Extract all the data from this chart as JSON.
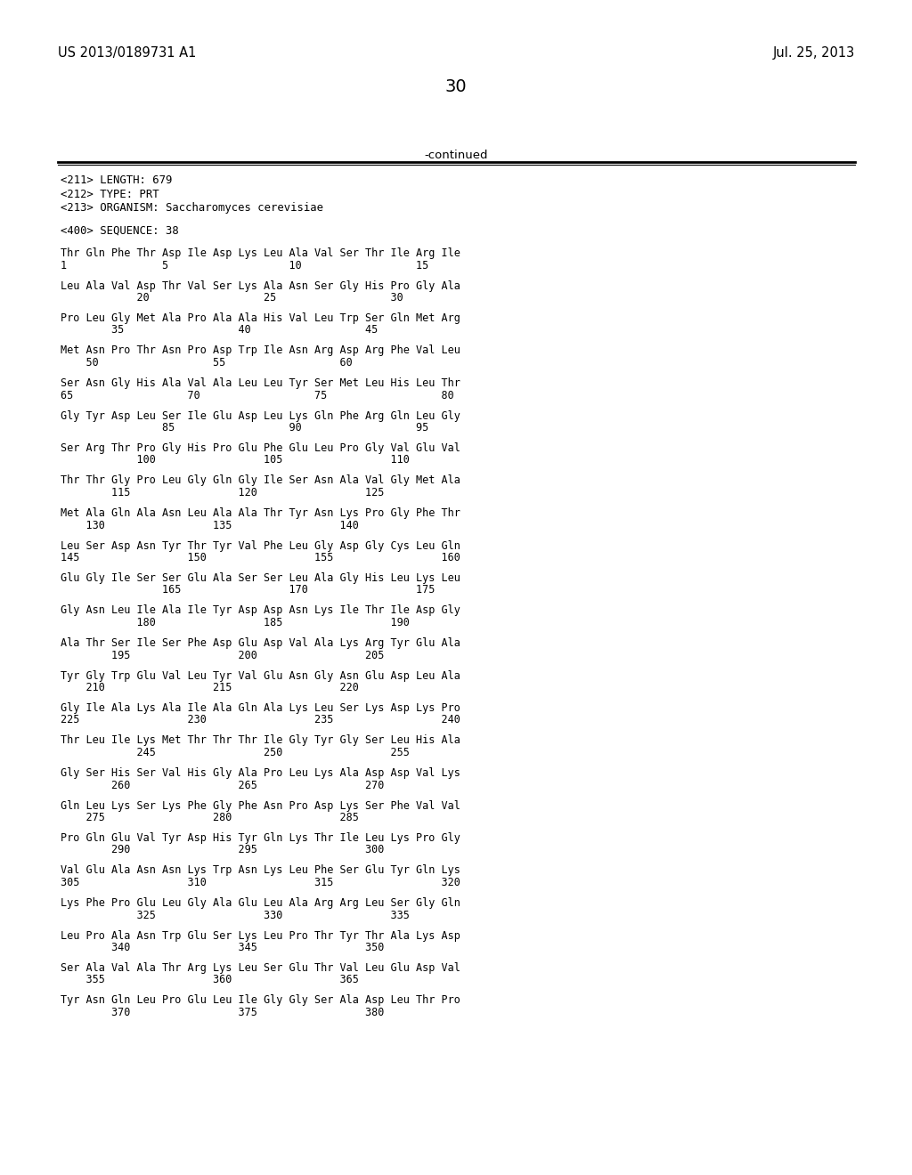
{
  "header_left": "US 2013/0189731 A1",
  "header_right": "Jul. 25, 2013",
  "page_number": "30",
  "continued_text": "-continued",
  "metadata": [
    "<211> LENGTH: 679",
    "<212> TYPE: PRT",
    "<213> ORGANISM: Saccharomyces cerevisiae"
  ],
  "sequence_header": "<400> SEQUENCE: 38",
  "sequence_blocks": [
    [
      "Thr Gln Phe Thr Asp Ile Asp Lys Leu Ala Val Ser Thr Ile Arg Ile",
      "1               5                   10                  15"
    ],
    [
      "Leu Ala Val Asp Thr Val Ser Lys Ala Asn Ser Gly His Pro Gly Ala",
      "            20                  25                  30"
    ],
    [
      "Pro Leu Gly Met Ala Pro Ala Ala His Val Leu Trp Ser Gln Met Arg",
      "        35                  40                  45"
    ],
    [
      "Met Asn Pro Thr Asn Pro Asp Trp Ile Asn Arg Asp Arg Phe Val Leu",
      "    50                  55                  60"
    ],
    [
      "Ser Asn Gly His Ala Val Ala Leu Leu Tyr Ser Met Leu His Leu Thr",
      "65                  70                  75                  80"
    ],
    [
      "Gly Tyr Asp Leu Ser Ile Glu Asp Leu Lys Gln Phe Arg Gln Leu Gly",
      "                85                  90                  95"
    ],
    [
      "Ser Arg Thr Pro Gly His Pro Glu Phe Glu Leu Pro Gly Val Glu Val",
      "            100                 105                 110"
    ],
    [
      "Thr Thr Gly Pro Leu Gly Gln Gly Ile Ser Asn Ala Val Gly Met Ala",
      "        115                 120                 125"
    ],
    [
      "Met Ala Gln Ala Asn Leu Ala Ala Thr Tyr Asn Lys Pro Gly Phe Thr",
      "    130                 135                 140"
    ],
    [
      "Leu Ser Asp Asn Tyr Thr Tyr Val Phe Leu Gly Asp Gly Cys Leu Gln",
      "145                 150                 155                 160"
    ],
    [
      "Glu Gly Ile Ser Ser Glu Ala Ser Ser Leu Ala Gly His Leu Lys Leu",
      "                165                 170                 175"
    ],
    [
      "Gly Asn Leu Ile Ala Ile Tyr Asp Asp Asn Lys Ile Thr Ile Asp Gly",
      "            180                 185                 190"
    ],
    [
      "Ala Thr Ser Ile Ser Phe Asp Glu Asp Val Ala Lys Arg Tyr Glu Ala",
      "        195                 200                 205"
    ],
    [
      "Tyr Gly Trp Glu Val Leu Tyr Val Glu Asn Gly Asn Glu Asp Leu Ala",
      "    210                 215                 220"
    ],
    [
      "Gly Ile Ala Lys Ala Ile Ala Gln Ala Lys Leu Ser Lys Asp Lys Pro",
      "225                 230                 235                 240"
    ],
    [
      "Thr Leu Ile Lys Met Thr Thr Thr Ile Gly Tyr Gly Ser Leu His Ala",
      "            245                 250                 255"
    ],
    [
      "Gly Ser His Ser Val His Gly Ala Pro Leu Lys Ala Asp Asp Val Lys",
      "        260                 265                 270"
    ],
    [
      "Gln Leu Lys Ser Lys Phe Gly Phe Asn Pro Asp Lys Ser Phe Val Val",
      "    275                 280                 285"
    ],
    [
      "Pro Gln Glu Val Tyr Asp His Tyr Gln Lys Thr Ile Leu Lys Pro Gly",
      "        290                 295                 300"
    ],
    [
      "Val Glu Ala Asn Asn Lys Trp Asn Lys Leu Phe Ser Glu Tyr Gln Lys",
      "305                 310                 315                 320"
    ],
    [
      "Lys Phe Pro Glu Leu Gly Ala Glu Leu Ala Arg Arg Leu Ser Gly Gln",
      "            325                 330                 335"
    ],
    [
      "Leu Pro Ala Asn Trp Glu Ser Lys Leu Pro Thr Tyr Thr Ala Lys Asp",
      "        340                 345                 350"
    ],
    [
      "Ser Ala Val Ala Thr Arg Lys Leu Ser Glu Thr Val Leu Glu Asp Val",
      "    355                 360                 365"
    ],
    [
      "Tyr Asn Gln Leu Pro Glu Leu Ile Gly Gly Ser Ala Asp Leu Thr Pro",
      "        370                 375                 380"
    ]
  ],
  "bg_color": "#ffffff"
}
